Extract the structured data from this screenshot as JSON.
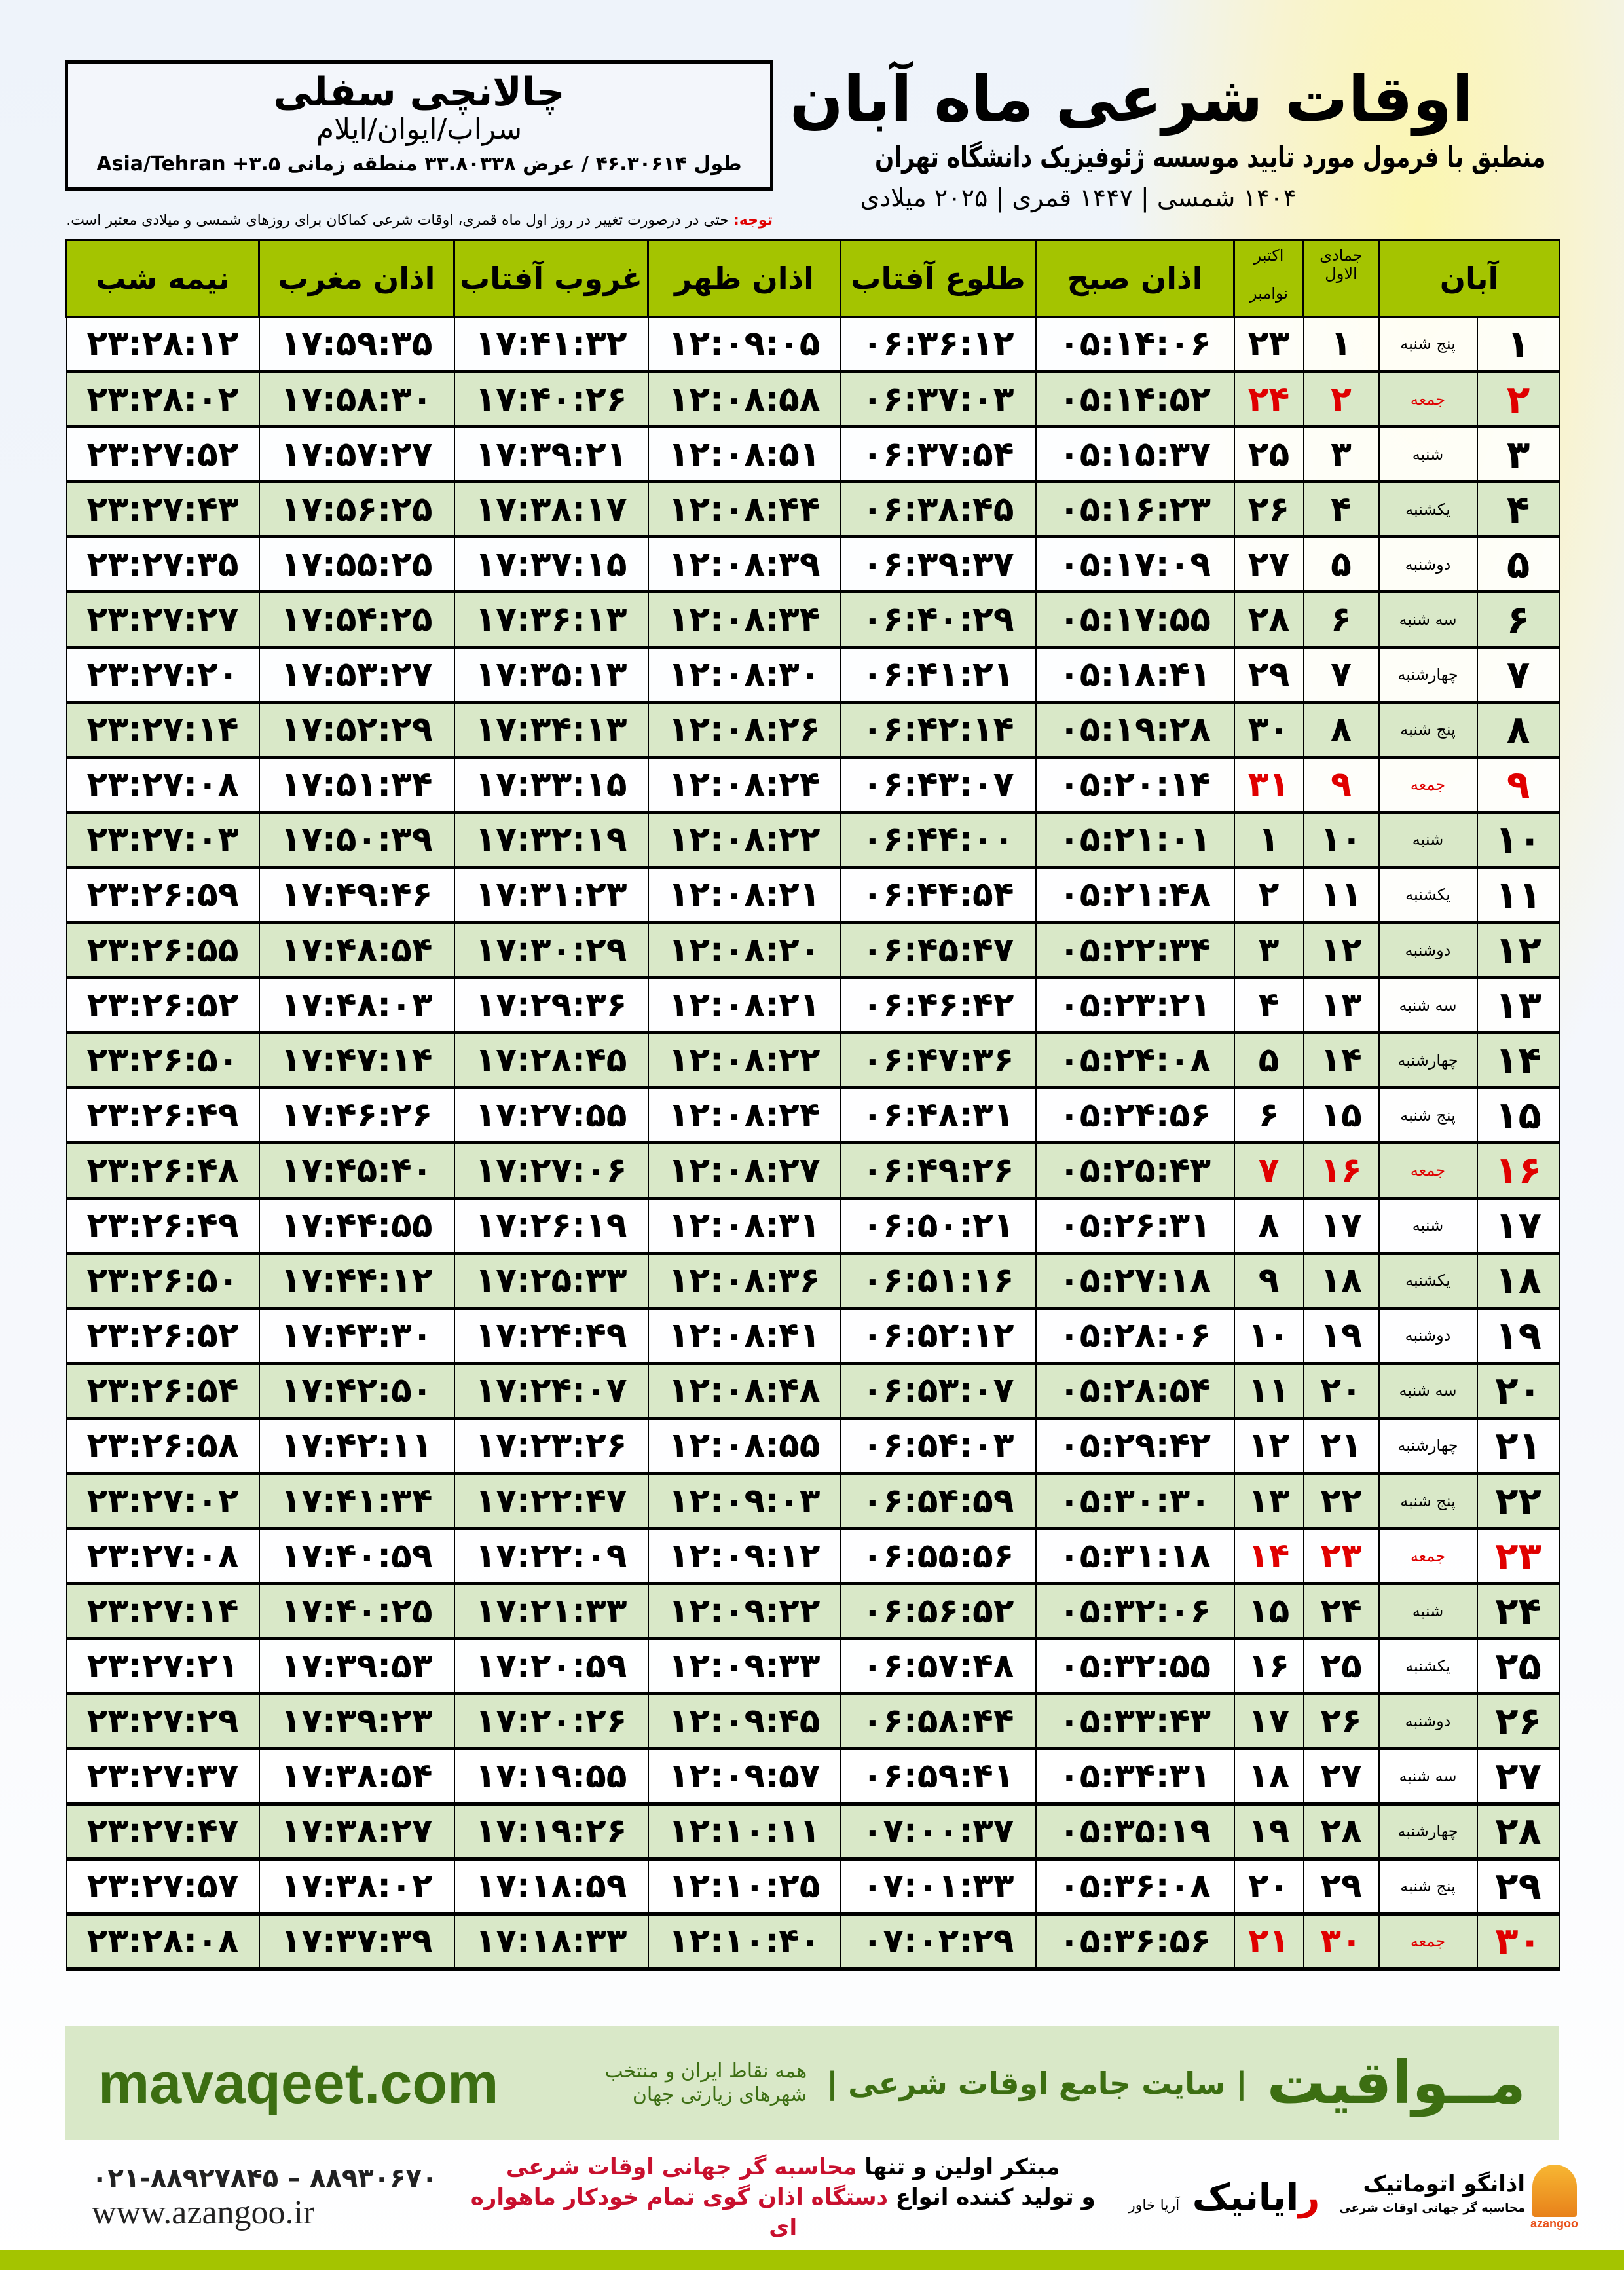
{
  "header": {
    "title": "اوقات شرعی ماه آبان",
    "subtitle": "منطبق با فرمول مورد تایید موسسه ژئوفیزیک دانشگاه تهران",
    "years": "۱۴۰۴ شمسی | ۱۴۴۷ قمری | ۲۰۲۵ میلادی"
  },
  "location": {
    "name": "چالانچی سفلی",
    "region": "سراب/ایوان/ایلام",
    "coords": "طول ۴۶.۳۰۶۱۴ / عرض ۳۳.۸۰۳۳۸ منطقه زمانی Asia/Tehran +۳.۵"
  },
  "note": {
    "label": "توجه:",
    "text": " حتی در درصورت تغییر در روز اول ماه قمری، اوقات شرعی کماکان برای روزهای شمسی و میلادی معتبر است."
  },
  "columns": {
    "aban": "آبان",
    "jumada": "جمادی الاول",
    "october": "اکتبر",
    "november": "نوامبر",
    "fajr": "اذان صبح",
    "sunrise": "طلوع آفتاب",
    "dhuhr": "اذان ظهر",
    "sunset": "غروب آفتاب",
    "maghrib": "اذان مغرب",
    "midnight": "نیمه شب"
  },
  "colors": {
    "header_green": "#a4c400",
    "row_green": "#d9e8c8",
    "friday_red": "#e00000",
    "brand_green": "#3c6e12"
  },
  "rows": [
    [
      "۱",
      "پنج شنبه",
      "۱",
      "۲۳",
      "۰۵:۱۴:۰۶",
      "۰۶:۳۶:۱۲",
      "۱۲:۰۹:۰۵",
      "۱۷:۴۱:۳۲",
      "۱۷:۵۹:۳۵",
      "۲۳:۲۸:۱۲"
    ],
    [
      "۲",
      "جمعه",
      "۲",
      "۲۴",
      "۰۵:۱۴:۵۲",
      "۰۶:۳۷:۰۳",
      "۱۲:۰۸:۵۸",
      "۱۷:۴۰:۲۶",
      "۱۷:۵۸:۳۰",
      "۲۳:۲۸:۰۲"
    ],
    [
      "۳",
      "شنبه",
      "۳",
      "۲۵",
      "۰۵:۱۵:۳۷",
      "۰۶:۳۷:۵۴",
      "۱۲:۰۸:۵۱",
      "۱۷:۳۹:۲۱",
      "۱۷:۵۷:۲۷",
      "۲۳:۲۷:۵۲"
    ],
    [
      "۴",
      "یکشنبه",
      "۴",
      "۲۶",
      "۰۵:۱۶:۲۳",
      "۰۶:۳۸:۴۵",
      "۱۲:۰۸:۴۴",
      "۱۷:۳۸:۱۷",
      "۱۷:۵۶:۲۵",
      "۲۳:۲۷:۴۳"
    ],
    [
      "۵",
      "دوشنبه",
      "۵",
      "۲۷",
      "۰۵:۱۷:۰۹",
      "۰۶:۳۹:۳۷",
      "۱۲:۰۸:۳۹",
      "۱۷:۳۷:۱۵",
      "۱۷:۵۵:۲۵",
      "۲۳:۲۷:۳۵"
    ],
    [
      "۶",
      "سه شنبه",
      "۶",
      "۲۸",
      "۰۵:۱۷:۵۵",
      "۰۶:۴۰:۲۹",
      "۱۲:۰۸:۳۴",
      "۱۷:۳۶:۱۳",
      "۱۷:۵۴:۲۵",
      "۲۳:۲۷:۲۷"
    ],
    [
      "۷",
      "چهارشنبه",
      "۷",
      "۲۹",
      "۰۵:۱۸:۴۱",
      "۰۶:۴۱:۲۱",
      "۱۲:۰۸:۳۰",
      "۱۷:۳۵:۱۳",
      "۱۷:۵۳:۲۷",
      "۲۳:۲۷:۲۰"
    ],
    [
      "۸",
      "پنج شنبه",
      "۸",
      "۳۰",
      "۰۵:۱۹:۲۸",
      "۰۶:۴۲:۱۴",
      "۱۲:۰۸:۲۶",
      "۱۷:۳۴:۱۳",
      "۱۷:۵۲:۲۹",
      "۲۳:۲۷:۱۴"
    ],
    [
      "۹",
      "جمعه",
      "۹",
      "۳۱",
      "۰۵:۲۰:۱۴",
      "۰۶:۴۳:۰۷",
      "۱۲:۰۸:۲۴",
      "۱۷:۳۳:۱۵",
      "۱۷:۵۱:۳۴",
      "۲۳:۲۷:۰۸"
    ],
    [
      "۱۰",
      "شنبه",
      "۱۰",
      "۱",
      "۰۵:۲۱:۰۱",
      "۰۶:۴۴:۰۰",
      "۱۲:۰۸:۲۲",
      "۱۷:۳۲:۱۹",
      "۱۷:۵۰:۳۹",
      "۲۳:۲۷:۰۳"
    ],
    [
      "۱۱",
      "یکشنبه",
      "۱۱",
      "۲",
      "۰۵:۲۱:۴۸",
      "۰۶:۴۴:۵۴",
      "۱۲:۰۸:۲۱",
      "۱۷:۳۱:۲۳",
      "۱۷:۴۹:۴۶",
      "۲۳:۲۶:۵۹"
    ],
    [
      "۱۲",
      "دوشنبه",
      "۱۲",
      "۳",
      "۰۵:۲۲:۳۴",
      "۰۶:۴۵:۴۷",
      "۱۲:۰۸:۲۰",
      "۱۷:۳۰:۲۹",
      "۱۷:۴۸:۵۴",
      "۲۳:۲۶:۵۵"
    ],
    [
      "۱۳",
      "سه شنبه",
      "۱۳",
      "۴",
      "۰۵:۲۳:۲۱",
      "۰۶:۴۶:۴۲",
      "۱۲:۰۸:۲۱",
      "۱۷:۲۹:۳۶",
      "۱۷:۴۸:۰۳",
      "۲۳:۲۶:۵۲"
    ],
    [
      "۱۴",
      "چهارشنبه",
      "۱۴",
      "۵",
      "۰۵:۲۴:۰۸",
      "۰۶:۴۷:۳۶",
      "۱۲:۰۸:۲۲",
      "۱۷:۲۸:۴۵",
      "۱۷:۴۷:۱۴",
      "۲۳:۲۶:۵۰"
    ],
    [
      "۱۵",
      "پنج شنبه",
      "۱۵",
      "۶",
      "۰۵:۲۴:۵۶",
      "۰۶:۴۸:۳۱",
      "۱۲:۰۸:۲۴",
      "۱۷:۲۷:۵۵",
      "۱۷:۴۶:۲۶",
      "۲۳:۲۶:۴۹"
    ],
    [
      "۱۶",
      "جمعه",
      "۱۶",
      "۷",
      "۰۵:۲۵:۴۳",
      "۰۶:۴۹:۲۶",
      "۱۲:۰۸:۲۷",
      "۱۷:۲۷:۰۶",
      "۱۷:۴۵:۴۰",
      "۲۳:۲۶:۴۸"
    ],
    [
      "۱۷",
      "شنبه",
      "۱۷",
      "۸",
      "۰۵:۲۶:۳۱",
      "۰۶:۵۰:۲۱",
      "۱۲:۰۸:۳۱",
      "۱۷:۲۶:۱۹",
      "۱۷:۴۴:۵۵",
      "۲۳:۲۶:۴۹"
    ],
    [
      "۱۸",
      "یکشنبه",
      "۱۸",
      "۹",
      "۰۵:۲۷:۱۸",
      "۰۶:۵۱:۱۶",
      "۱۲:۰۸:۳۶",
      "۱۷:۲۵:۳۳",
      "۱۷:۴۴:۱۲",
      "۲۳:۲۶:۵۰"
    ],
    [
      "۱۹",
      "دوشنبه",
      "۱۹",
      "۱۰",
      "۰۵:۲۸:۰۶",
      "۰۶:۵۲:۱۲",
      "۱۲:۰۸:۴۱",
      "۱۷:۲۴:۴۹",
      "۱۷:۴۳:۳۰",
      "۲۳:۲۶:۵۲"
    ],
    [
      "۲۰",
      "سه شنبه",
      "۲۰",
      "۱۱",
      "۰۵:۲۸:۵۴",
      "۰۶:۵۳:۰۷",
      "۱۲:۰۸:۴۸",
      "۱۷:۲۴:۰۷",
      "۱۷:۴۲:۵۰",
      "۲۳:۲۶:۵۴"
    ],
    [
      "۲۱",
      "چهارشنبه",
      "۲۱",
      "۱۲",
      "۰۵:۲۹:۴۲",
      "۰۶:۵۴:۰۳",
      "۱۲:۰۸:۵۵",
      "۱۷:۲۳:۲۶",
      "۱۷:۴۲:۱۱",
      "۲۳:۲۶:۵۸"
    ],
    [
      "۲۲",
      "پنج شنبه",
      "۲۲",
      "۱۳",
      "۰۵:۳۰:۳۰",
      "۰۶:۵۴:۵۹",
      "۱۲:۰۹:۰۳",
      "۱۷:۲۲:۴۷",
      "۱۷:۴۱:۳۴",
      "۲۳:۲۷:۰۲"
    ],
    [
      "۲۳",
      "جمعه",
      "۲۳",
      "۱۴",
      "۰۵:۳۱:۱۸",
      "۰۶:۵۵:۵۶",
      "۱۲:۰۹:۱۲",
      "۱۷:۲۲:۰۹",
      "۱۷:۴۰:۵۹",
      "۲۳:۲۷:۰۸"
    ],
    [
      "۲۴",
      "شنبه",
      "۲۴",
      "۱۵",
      "۰۵:۳۲:۰۶",
      "۰۶:۵۶:۵۲",
      "۱۲:۰۹:۲۲",
      "۱۷:۲۱:۳۳",
      "۱۷:۴۰:۲۵",
      "۲۳:۲۷:۱۴"
    ],
    [
      "۲۵",
      "یکشنبه",
      "۲۵",
      "۱۶",
      "۰۵:۳۲:۵۵",
      "۰۶:۵۷:۴۸",
      "۱۲:۰۹:۳۳",
      "۱۷:۲۰:۵۹",
      "۱۷:۳۹:۵۳",
      "۲۳:۲۷:۲۱"
    ],
    [
      "۲۶",
      "دوشنبه",
      "۲۶",
      "۱۷",
      "۰۵:۳۳:۴۳",
      "۰۶:۵۸:۴۴",
      "۱۲:۰۹:۴۵",
      "۱۷:۲۰:۲۶",
      "۱۷:۳۹:۲۳",
      "۲۳:۲۷:۲۹"
    ],
    [
      "۲۷",
      "سه شنبه",
      "۲۷",
      "۱۸",
      "۰۵:۳۴:۳۱",
      "۰۶:۵۹:۴۱",
      "۱۲:۰۹:۵۷",
      "۱۷:۱۹:۵۵",
      "۱۷:۳۸:۵۴",
      "۲۳:۲۷:۳۷"
    ],
    [
      "۲۸",
      "چهارشنبه",
      "۲۸",
      "۱۹",
      "۰۵:۳۵:۱۹",
      "۰۷:۰۰:۳۷",
      "۱۲:۱۰:۱۱",
      "۱۷:۱۹:۲۶",
      "۱۷:۳۸:۲۷",
      "۲۳:۲۷:۴۷"
    ],
    [
      "۲۹",
      "پنج شنبه",
      "۲۹",
      "۲۰",
      "۰۵:۳۶:۰۸",
      "۰۷:۰۱:۳۳",
      "۱۲:۱۰:۲۵",
      "۱۷:۱۸:۵۹",
      "۱۷:۳۸:۰۲",
      "۲۳:۲۷:۵۷"
    ],
    [
      "۳۰",
      "جمعه",
      "۳۰",
      "۲۱",
      "۰۵:۳۶:۵۶",
      "۰۷:۰۲:۲۹",
      "۱۲:۱۰:۴۰",
      "۱۷:۱۸:۳۳",
      "۱۷:۳۷:۳۹",
      "۲۳:۲۸:۰۸"
    ]
  ],
  "footer": {
    "site": "mavaqeet.com",
    "brand": "مــواقیت",
    "tagline": "| سایت جامع اوقات شرعی |",
    "tagline2": "همه نقاط ایران و منتخب شهرهای زیارتی جهان",
    "phone": "۰۲۱-۸۸۹۲۷۸۴۵ – ۸۸۹۳۰۶۷۰",
    "web": "www.azangoo.ir",
    "promo1a": "مبتکر اولین و تنها ",
    "promo1b": "محاسبه گر جهانی اوقات شرعی",
    "promo2a": "و تولید کننده انواع ",
    "promo2b": "دستگاه اذان گوی تمام خودکار ماهواره ای",
    "raya_r": "ر",
    "raya": "ایانیک",
    "raya_small": "آریا خاور",
    "az_name": "اذانگو اتوماتیک",
    "az_sub": "محاسبه گر جهانی اوقات شرعی",
    "az_word": "azangoo"
  }
}
